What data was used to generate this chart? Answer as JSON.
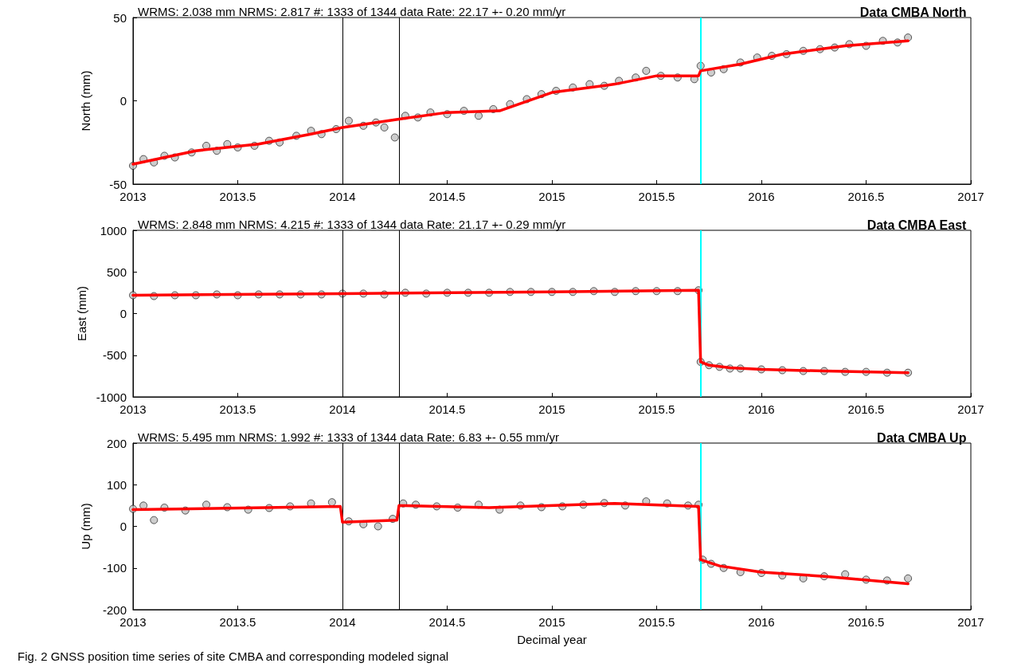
{
  "chart_data": [
    {
      "type": "scatter",
      "title": "WRMS: 2.038 mm NRMS: 2.817 #: 1333 of 1344 data Rate: 22.17 +- 0.20 mm/yr",
      "subtitle": "Data CMBA North",
      "ylabel": "North (mm)",
      "xlim": [
        2013,
        2017
      ],
      "xticks": [
        2013,
        2013.5,
        2014,
        2014.5,
        2015,
        2015.5,
        2016,
        2016.5,
        2017
      ],
      "ylim": [
        -50,
        50
      ],
      "yticks": [
        -50,
        0,
        50
      ],
      "ref_lines": [
        {
          "axis": "x",
          "value": 2014.0,
          "color": "#000000"
        },
        {
          "axis": "x",
          "value": 2014.27,
          "color": "#000000"
        },
        {
          "axis": "x",
          "value": 2015.71,
          "color": "#00ffff"
        }
      ],
      "series": [
        {
          "color": "#c0c0c0",
          "marker": "circle",
          "x": [
            2013.0,
            2013.05,
            2013.1,
            2013.15,
            2013.2,
            2013.28,
            2013.35,
            2013.4,
            2013.45,
            2013.5,
            2013.58,
            2013.65,
            2013.7,
            2013.78,
            2013.85,
            2013.9,
            2013.97,
            2014.03,
            2014.1,
            2014.16,
            2014.2,
            2014.25,
            2014.3,
            2014.36,
            2014.42,
            2014.5,
            2014.58,
            2014.65,
            2014.72,
            2014.8,
            2014.88,
            2014.95,
            2015.02,
            2015.1,
            2015.18,
            2015.25,
            2015.32,
            2015.4,
            2015.45,
            2015.52,
            2015.6,
            2015.68,
            2015.71,
            2015.76,
            2015.82,
            2015.9,
            2015.98,
            2016.05,
            2016.12,
            2016.2,
            2016.28,
            2016.35,
            2016.42,
            2016.5,
            2016.58,
            2016.65,
            2016.7
          ],
          "values": [
            -39,
            -35,
            -37,
            -33,
            -34,
            -31,
            -27,
            -30,
            -26,
            -28,
            -27,
            -24,
            -25,
            -21,
            -18,
            -20,
            -17,
            -12,
            -15,
            -13,
            -16,
            -22,
            -9,
            -10,
            -7,
            -8,
            -6,
            -9,
            -5,
            -2,
            1,
            4,
            6,
            8,
            10,
            9,
            12,
            14,
            18,
            15,
            14,
            13,
            21,
            17,
            19,
            23,
            26,
            27,
            28,
            30,
            31,
            32,
            34,
            33,
            36,
            35,
            38
          ]
        },
        {
          "type": "line",
          "color": "#ff0000",
          "marker": "none",
          "x": [
            2013.0,
            2013.3,
            2013.6,
            2013.85,
            2014.0,
            2014.27,
            2014.5,
            2014.75,
            2015.0,
            2015.3,
            2015.5,
            2015.7,
            2015.71,
            2015.9,
            2016.1,
            2016.4,
            2016.7
          ],
          "values": [
            -38,
            -30,
            -26,
            -20,
            -16,
            -11,
            -7,
            -6,
            5,
            10,
            15,
            15,
            18,
            22,
            28,
            33,
            36
          ]
        }
      ]
    },
    {
      "type": "scatter",
      "title": "WRMS: 2.848 mm NRMS: 4.215 #: 1333 of 1344 data Rate: 21.17 +- 0.29 mm/yr",
      "subtitle": "Data CMBA East",
      "ylabel": "East (mm)",
      "xlim": [
        2013,
        2017
      ],
      "xticks": [
        2013,
        2013.5,
        2014,
        2014.5,
        2015,
        2015.5,
        2016,
        2016.5,
        2017
      ],
      "ylim": [
        -1000,
        1000
      ],
      "yticks": [
        -1000,
        -500,
        0,
        500,
        1000
      ],
      "ref_lines": [
        {
          "axis": "x",
          "value": 2014.0,
          "color": "#000000"
        },
        {
          "axis": "x",
          "value": 2014.27,
          "color": "#000000"
        },
        {
          "axis": "x",
          "value": 2015.71,
          "color": "#00ffff"
        }
      ],
      "series": [
        {
          "color": "#c0c0c0",
          "marker": "circle",
          "x": [
            2013.0,
            2013.1,
            2013.2,
            2013.3,
            2013.4,
            2013.5,
            2013.6,
            2013.7,
            2013.8,
            2013.9,
            2014.0,
            2014.1,
            2014.2,
            2014.3,
            2014.4,
            2014.5,
            2014.6,
            2014.7,
            2014.8,
            2014.9,
            2015.0,
            2015.1,
            2015.2,
            2015.3,
            2015.4,
            2015.5,
            2015.6,
            2015.7,
            2015.71,
            2015.75,
            2015.8,
            2015.85,
            2015.9,
            2016.0,
            2016.1,
            2016.2,
            2016.3,
            2016.4,
            2016.5,
            2016.6,
            2016.7
          ],
          "values": [
            220,
            210,
            220,
            220,
            230,
            220,
            230,
            230,
            230,
            230,
            240,
            240,
            230,
            250,
            240,
            250,
            250,
            250,
            260,
            260,
            260,
            260,
            270,
            260,
            270,
            270,
            270,
            280,
            -580,
            -620,
            -640,
            -660,
            -660,
            -670,
            -680,
            -690,
            -690,
            -700,
            -700,
            -710,
            -710
          ]
        },
        {
          "type": "line",
          "color": "#ff0000",
          "marker": "none",
          "x": [
            2013.0,
            2014.0,
            2015.0,
            2015.7,
            2015.71,
            2015.75,
            2015.85,
            2016.0,
            2016.3,
            2016.7
          ],
          "values": [
            220,
            240,
            260,
            280,
            -580,
            -620,
            -650,
            -670,
            -690,
            -710
          ]
        }
      ]
    },
    {
      "type": "scatter",
      "title": "WRMS: 5.495 mm NRMS: 1.992 #: 1333 of 1344 data Rate: 6.83 +- 0.55 mm/yr",
      "subtitle": "Data CMBA Up",
      "ylabel": "Up (mm)",
      "xlabel": "Decimal year",
      "xlim": [
        2013,
        2017
      ],
      "xticks": [
        2013,
        2013.5,
        2014,
        2014.5,
        2015,
        2015.5,
        2016,
        2016.5,
        2017
      ],
      "ylim": [
        -200,
        200
      ],
      "yticks": [
        -200,
        -100,
        0,
        100,
        200
      ],
      "annotations": [
        "Fig. 2 GNSS position time series of site CMBA and corresponding modeled signal"
      ],
      "ref_lines": [
        {
          "axis": "x",
          "value": 2014.0,
          "color": "#000000"
        },
        {
          "axis": "x",
          "value": 2014.27,
          "color": "#000000"
        },
        {
          "axis": "x",
          "value": 2015.71,
          "color": "#00ffff"
        }
      ],
      "series": [
        {
          "color": "#c0c0c0",
          "marker": "circle",
          "x": [
            2013.0,
            2013.05,
            2013.1,
            2013.15,
            2013.25,
            2013.35,
            2013.45,
            2013.55,
            2013.65,
            2013.75,
            2013.85,
            2013.95,
            2014.03,
            2014.1,
            2014.17,
            2014.24,
            2014.29,
            2014.35,
            2014.45,
            2014.55,
            2014.65,
            2014.75,
            2014.85,
            2014.95,
            2015.05,
            2015.15,
            2015.25,
            2015.35,
            2015.45,
            2015.55,
            2015.65,
            2015.7,
            2015.72,
            2015.76,
            2015.82,
            2015.9,
            2016.0,
            2016.1,
            2016.2,
            2016.3,
            2016.4,
            2016.5,
            2016.6,
            2016.7
          ],
          "values": [
            42,
            50,
            15,
            45,
            38,
            52,
            46,
            40,
            44,
            48,
            55,
            58,
            12,
            5,
            0,
            18,
            55,
            52,
            48,
            45,
            52,
            40,
            50,
            46,
            48,
            52,
            56,
            50,
            60,
            55,
            50,
            52,
            -80,
            -90,
            -100,
            -110,
            -112,
            -118,
            -125,
            -120,
            -115,
            -128,
            -130,
            -125
          ]
        },
        {
          "type": "line",
          "color": "#ff0000",
          "marker": "none",
          "x": [
            2013.0,
            2013.99,
            2014.0,
            2014.26,
            2014.27,
            2014.7,
            2015.3,
            2015.7,
            2015.71,
            2015.8,
            2016.0,
            2016.3,
            2016.7
          ],
          "values": [
            40,
            48,
            10,
            15,
            50,
            45,
            55,
            48,
            -80,
            -95,
            -110,
            -120,
            -138
          ]
        }
      ]
    }
  ]
}
